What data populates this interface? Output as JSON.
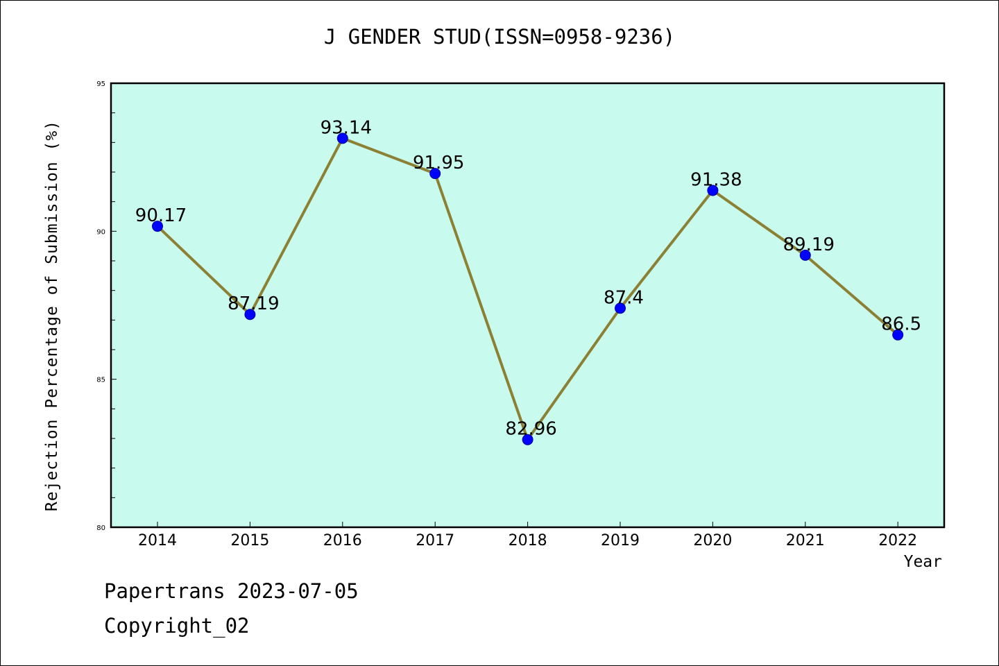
{
  "chart_data": {
    "type": "line",
    "title": "J GENDER STUD(ISSN=0958-9236)",
    "xlabel": "Year",
    "ylabel": "Rejection Percentage of Submission (%)",
    "categories": [
      "2014",
      "2015",
      "2016",
      "2017",
      "2018",
      "2019",
      "2020",
      "2021",
      "2022"
    ],
    "series": [
      {
        "values": [
          90.17,
          87.19,
          93.14,
          91.95,
          82.96,
          87.4,
          91.38,
          89.19,
          86.5
        ],
        "labels": [
          "90.17",
          "87.19",
          "93.14",
          "91.95",
          "82.96",
          "87.4",
          "91.38",
          "89.19",
          "86.5"
        ]
      }
    ],
    "ylim": [
      80,
      95
    ],
    "yticks": [
      "80",
      "85",
      "90",
      "95"
    ],
    "grid": false,
    "legend": "none",
    "colors": {
      "plot_background": "#c8fbee",
      "line": "#8b8033",
      "marker": "#0000ff"
    }
  },
  "footer": {
    "line1": "Papertrans 2023-07-05",
    "line2": "Copyright_02"
  }
}
